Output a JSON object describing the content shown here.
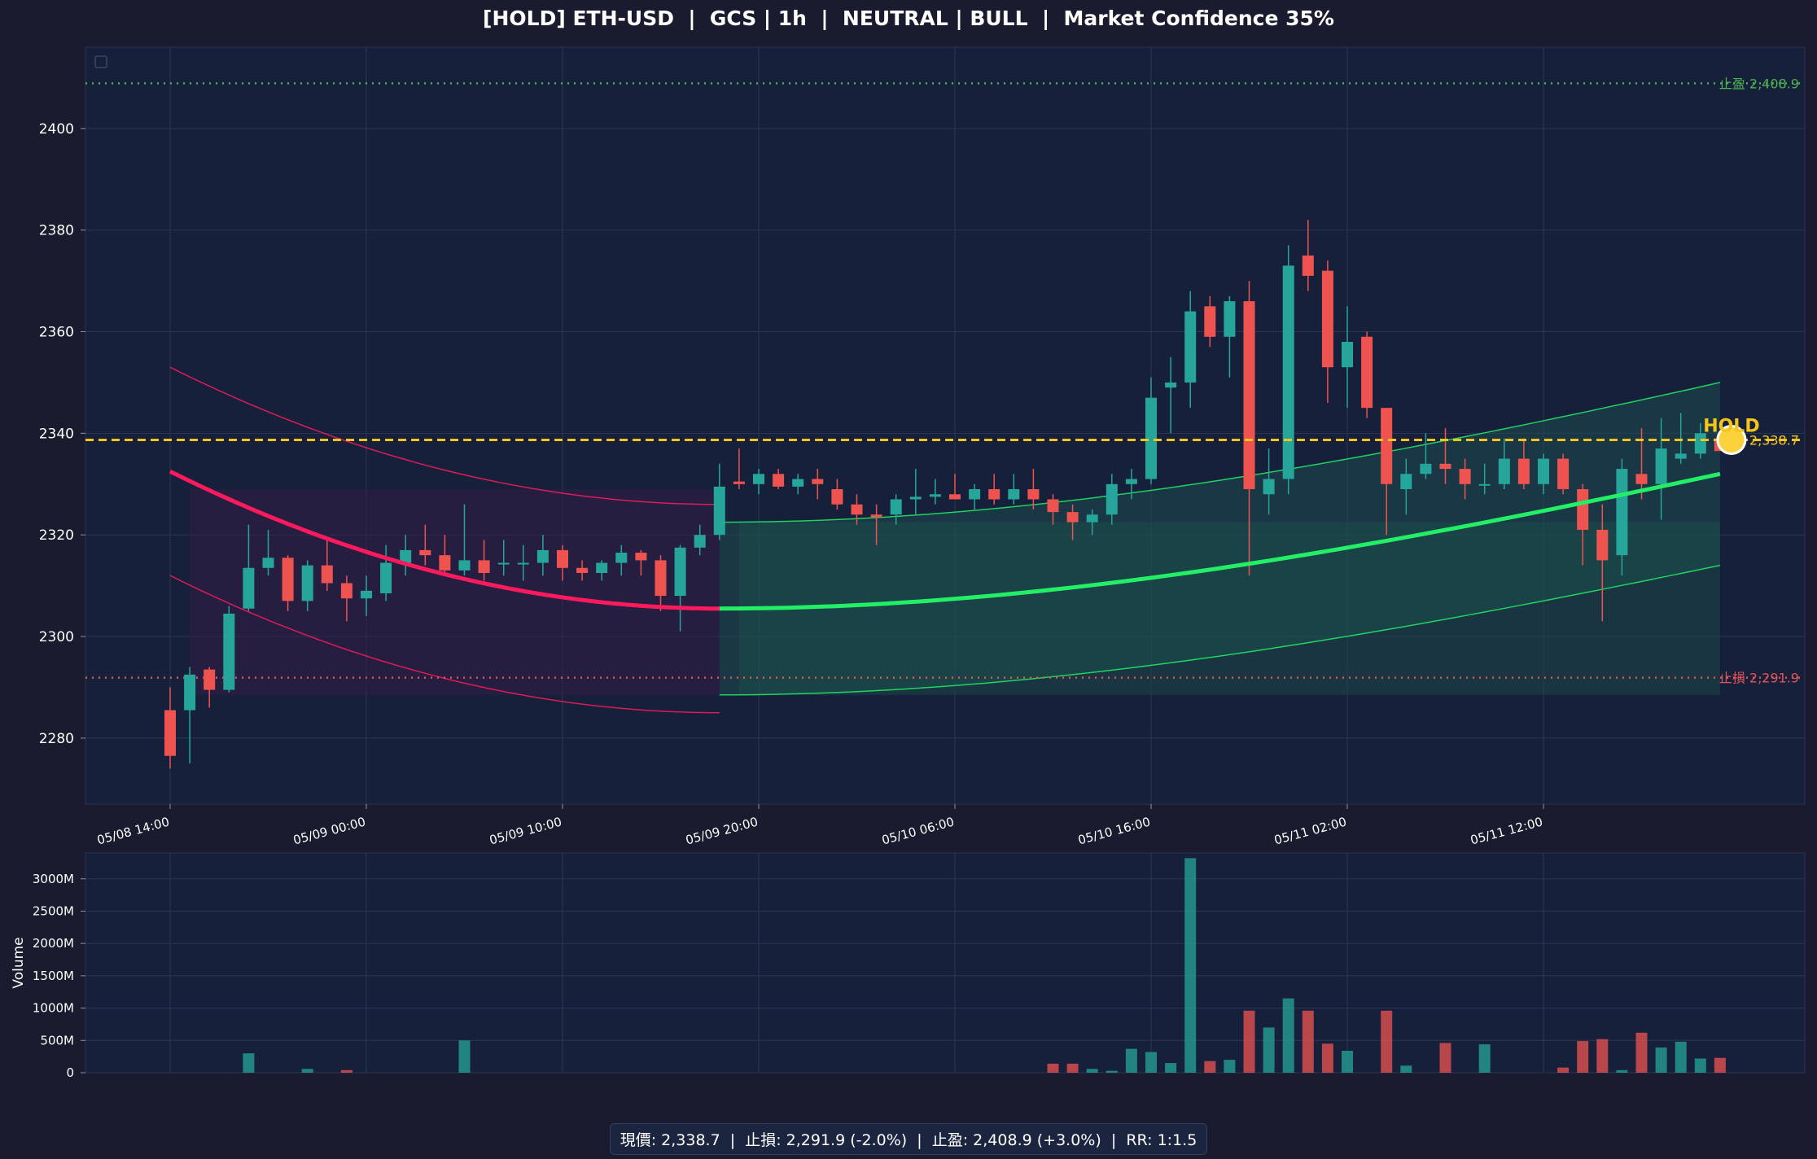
{
  "title": "[HOLD] ETH-USD  |  GCS | 1h  |  NEUTRAL | BULL  |  Market Confidence 35%",
  "footer": "現價: 2,338.7  |  止損: 2,291.9 (-2.0%)  |  止盈: 2,408.9 (+3.0%)  |  RR: 1:1.5",
  "colors": {
    "background": "#1a1b2e",
    "panel": "#16203b",
    "up": "#26a69a",
    "down": "#ef5350",
    "bear_curve": "#ff1a5e",
    "bull_curve": "#22ee66",
    "current_line": "#f5c518",
    "take_profit": "#4caf50",
    "stop_loss": "#e05555"
  },
  "chart_data": [
    {
      "type": "candlestick",
      "title": "[HOLD] ETH-USD  |  GCS | 1h  |  NEUTRAL | BULL  |  Market Confidence 35%",
      "ylim": [
        2267,
        2416
      ],
      "yticks": [
        2280,
        2300,
        2320,
        2340,
        2360,
        2380,
        2400
      ],
      "xticks": [
        {
          "index": 0,
          "label": "05/08 14:00"
        },
        {
          "index": 10,
          "label": "05/09 00:00"
        },
        {
          "index": 20,
          "label": "05/09 10:00"
        },
        {
          "index": 30,
          "label": "05/09 20:00"
        },
        {
          "index": 40,
          "label": "05/10 06:00"
        },
        {
          "index": 50,
          "label": "05/10 16:00"
        },
        {
          "index": 60,
          "label": "05/11 02:00"
        },
        {
          "index": 70,
          "label": "05/11 12:00"
        }
      ],
      "candles": [
        [
          2285.5,
          2290,
          2274,
          2276.5
        ],
        [
          2285.5,
          2294,
          2275,
          2292.5
        ],
        [
          2293.5,
          2294,
          2286,
          2289.5
        ],
        [
          2289.5,
          2306,
          2289,
          2304.5
        ],
        [
          2305.5,
          2322,
          2305,
          2313.5
        ],
        [
          2313.5,
          2321,
          2312,
          2315.5
        ],
        [
          2315.5,
          2316,
          2305,
          2307
        ],
        [
          2307,
          2315,
          2305,
          2314
        ],
        [
          2314,
          2319,
          2309,
          2310.5
        ],
        [
          2310.5,
          2312,
          2303,
          2307.5
        ],
        [
          2307.5,
          2312,
          2304,
          2309
        ],
        [
          2308.5,
          2318,
          2307,
          2314.5
        ],
        [
          2314.5,
          2320,
          2312,
          2317
        ],
        [
          2317,
          2322,
          2314,
          2316
        ],
        [
          2316,
          2320,
          2312,
          2313
        ],
        [
          2313,
          2326,
          2312,
          2315
        ],
        [
          2315,
          2319,
          2311,
          2312.5
        ],
        [
          2314.5,
          2319,
          2312,
          2314.5
        ],
        [
          2314.5,
          2318,
          2311,
          2314.5
        ],
        [
          2314.5,
          2320,
          2312,
          2317
        ],
        [
          2317,
          2318,
          2311,
          2313.5
        ],
        [
          2313.5,
          2315,
          2311,
          2312.5
        ],
        [
          2312.5,
          2315,
          2311,
          2314.5
        ],
        [
          2314.5,
          2318,
          2312,
          2316.5
        ],
        [
          2316.5,
          2317,
          2312,
          2315
        ],
        [
          2315,
          2316,
          2305,
          2308
        ],
        [
          2308,
          2318,
          2301,
          2317.5
        ],
        [
          2317.5,
          2322,
          2316,
          2320
        ],
        [
          2320,
          2334,
          2319,
          2329.5
        ],
        [
          2330.5,
          2337,
          2329,
          2330
        ],
        [
          2330,
          2333,
          2328,
          2332
        ],
        [
          2332,
          2333,
          2329,
          2329.5
        ],
        [
          2329.5,
          2332,
          2328,
          2331
        ],
        [
          2331,
          2333,
          2327,
          2330
        ],
        [
          2329,
          2331,
          2325,
          2326
        ],
        [
          2326,
          2328,
          2322,
          2324
        ],
        [
          2324,
          2326,
          2318,
          2323.5
        ],
        [
          2324,
          2328,
          2322,
          2327
        ],
        [
          2327,
          2333,
          2324,
          2327.5
        ],
        [
          2327.5,
          2331,
          2326,
          2328
        ],
        [
          2328,
          2332,
          2327,
          2327
        ],
        [
          2327,
          2330,
          2325,
          2329
        ],
        [
          2329,
          2332,
          2326,
          2327
        ],
        [
          2327,
          2332,
          2326,
          2329
        ],
        [
          2329,
          2333,
          2325,
          2327
        ],
        [
          2327,
          2328,
          2322,
          2324.5
        ],
        [
          2324.5,
          2326,
          2319,
          2322.5
        ],
        [
          2322.5,
          2325,
          2320,
          2324
        ],
        [
          2324,
          2332,
          2322,
          2330
        ],
        [
          2330,
          2333,
          2327,
          2331
        ],
        [
          2331,
          2351,
          2330,
          2347
        ],
        [
          2349,
          2355,
          2340,
          2350
        ],
        [
          2350,
          2368,
          2345,
          2364
        ],
        [
          2365,
          2367,
          2357,
          2359
        ],
        [
          2359,
          2367,
          2351,
          2366
        ],
        [
          2366,
          2370,
          2312,
          2329
        ],
        [
          2328,
          2337,
          2324,
          2331
        ],
        [
          2331,
          2377,
          2328,
          2373
        ],
        [
          2375,
          2382,
          2368,
          2371
        ],
        [
          2372,
          2374,
          2346,
          2353
        ],
        [
          2353,
          2365,
          2345,
          2358
        ],
        [
          2359,
          2360,
          2343,
          2345
        ],
        [
          2345,
          2345,
          2320,
          2330
        ],
        [
          2329,
          2335,
          2324,
          2332
        ],
        [
          2332,
          2340,
          2331,
          2334
        ],
        [
          2334,
          2341,
          2330,
          2333
        ],
        [
          2333,
          2335,
          2327,
          2330
        ],
        [
          2330,
          2334,
          2328,
          2330
        ],
        [
          2330,
          2339,
          2329,
          2335
        ],
        [
          2335,
          2339,
          2329,
          2330
        ],
        [
          2330,
          2336,
          2328,
          2335
        ],
        [
          2335,
          2336,
          2328,
          2329
        ],
        [
          2329,
          2330,
          2314,
          2321
        ],
        [
          2321,
          2326,
          2303,
          2315
        ],
        [
          2316,
          2335,
          2312,
          2333
        ],
        [
          2332,
          2341,
          2327,
          2330
        ],
        [
          2330,
          2343,
          2323,
          2337
        ],
        [
          2335,
          2344,
          2334,
          2336
        ],
        [
          2336,
          2342,
          2335,
          2340
        ],
        [
          2339,
          2340,
          2337,
          2336.5
        ]
      ],
      "volume_axis": {
        "label": "Volume",
        "ylim": [
          0,
          3400
        ],
        "ticks": [
          "0",
          "500M",
          "1000M",
          "1500M",
          "2000M",
          "2500M",
          "3000M"
        ],
        "tick_values": [
          0,
          500,
          1000,
          1500,
          2000,
          2500,
          3000
        ]
      },
      "volume": [
        0,
        0,
        0,
        0,
        300,
        0,
        0,
        60,
        0,
        40,
        0,
        0,
        0,
        0,
        0,
        500,
        0,
        0,
        0,
        0,
        0,
        0,
        0,
        0,
        0,
        0,
        0,
        0,
        0,
        0,
        0,
        0,
        0,
        0,
        0,
        0,
        0,
        0,
        0,
        0,
        0,
        0,
        0,
        0,
        0,
        140,
        140,
        60,
        30,
        370,
        320,
        150,
        3320,
        180,
        200,
        960,
        700,
        1150,
        960,
        450,
        340,
        0,
        960,
        110,
        0,
        460,
        0,
        440,
        0,
        0,
        0,
        80,
        490,
        520,
        40,
        620,
        390,
        480,
        220,
        230
      ],
      "bear_curve": {
        "x_range": [
          0,
          28
        ],
        "center": [
          2332.5,
          2305.5
        ],
        "upper_offset": 20.5,
        "lower_offset": 20.5
      },
      "bull_curve": {
        "x_range": [
          28,
          79
        ],
        "center": [
          2305.5,
          2332
        ],
        "upper_start": 2322.5,
        "upper_end": 2350,
        "lower_start": 2288.5,
        "lower_end": 2314
      },
      "take_profit": {
        "value": 2408.9,
        "label": "止盈 2,408.9"
      },
      "stop_loss": {
        "value": 2291.9,
        "label": "止損 2,291.9"
      },
      "current_price": {
        "value": 2338.7,
        "label": "現價 2,338.7"
      },
      "signal": {
        "label": "HOLD",
        "index": 79,
        "value": 2338.7
      }
    }
  ]
}
